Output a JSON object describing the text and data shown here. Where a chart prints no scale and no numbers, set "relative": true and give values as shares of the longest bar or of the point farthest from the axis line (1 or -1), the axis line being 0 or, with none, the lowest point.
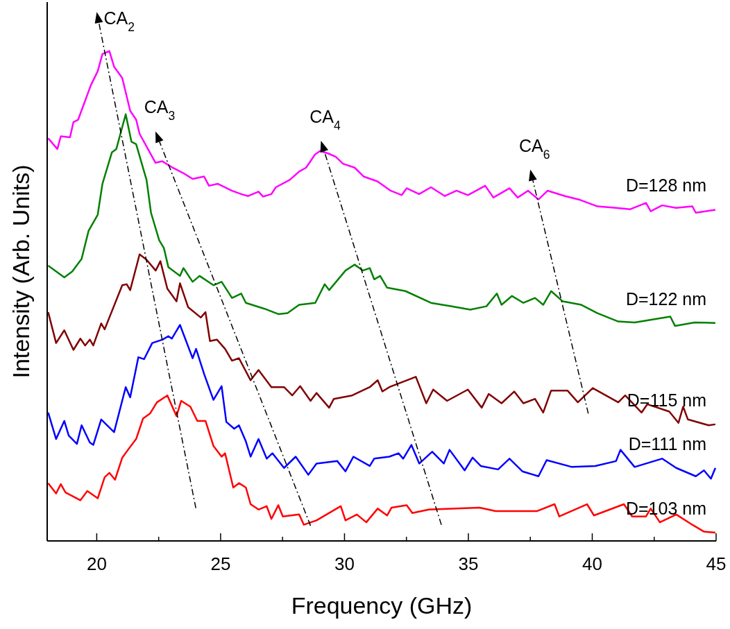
{
  "chart_data": {
    "type": "line",
    "relative": true,
    "xlabel": "Frequency (GHz)",
    "ylabel": "Intensity (Arb. Units)",
    "xlim": [
      18,
      45
    ],
    "xticks": [
      20,
      {
        "value": 22.5,
        "label": null
      },
      25,
      {
        "value": 27.5,
        "label": null
      },
      30,
      {
        "value": 32.5,
        "label": null
      },
      35,
      {
        "value": 37.5,
        "label": null
      },
      40,
      {
        "value": 42.5,
        "label": null
      },
      45
    ],
    "annotations": [
      "CA$_{2}$",
      "CA$_{3}$",
      "CA$_{4}$",
      "CA$_{6}$"
    ],
    "series": [
      {
        "name": "D=128 nm",
        "color": "#ff00ff",
        "x": [
          18.04,
          18.41,
          18.55,
          18.92,
          19.06,
          19.25,
          19.76,
          20.04,
          20.23,
          20.51,
          20.7,
          21.03,
          21.35,
          21.59,
          21.73,
          22.09,
          22.37,
          22.65,
          23.03,
          23.49,
          23.87,
          24.33,
          24.53,
          24.89,
          25.45,
          25.83,
          26.11,
          26.53,
          26.71,
          27.05,
          27.23,
          27.79,
          28.17,
          28.45,
          28.81,
          29.01,
          29.34,
          29.65,
          29.94,
          30.41,
          30.77,
          31.33,
          31.86,
          32.31,
          32.51,
          33.01,
          33.49,
          34.05,
          34.52,
          34.98,
          35.68,
          36.01,
          36.66,
          36.99,
          37.41,
          37.83,
          38.2,
          38.9,
          39.46,
          40.21,
          40.96,
          41.52,
          42.17,
          42.36,
          42.82,
          43.38,
          44.04,
          44.18,
          44.97
        ],
        "values": [
          0.822,
          0.8,
          0.826,
          0.824,
          0.855,
          0.86,
          0.93,
          0.959,
          0.994,
          1.0,
          0.968,
          0.945,
          0.878,
          0.86,
          0.831,
          0.798,
          0.772,
          0.775,
          0.763,
          0.751,
          0.739,
          0.744,
          0.725,
          0.729,
          0.715,
          0.708,
          0.704,
          0.713,
          0.703,
          0.708,
          0.722,
          0.737,
          0.754,
          0.762,
          0.789,
          0.796,
          0.791,
          0.784,
          0.77,
          0.762,
          0.744,
          0.734,
          0.715,
          0.706,
          0.72,
          0.708,
          0.722,
          0.704,
          0.715,
          0.706,
          0.725,
          0.701,
          0.72,
          0.701,
          0.715,
          0.697,
          0.715,
          0.704,
          0.697,
          0.683,
          0.68,
          0.677,
          0.69,
          0.673,
          0.685,
          0.68,
          0.683,
          0.67,
          0.676
        ]
      },
      {
        "name": "D=122 nm",
        "color": "#008000",
        "x": [
          18.04,
          18.69,
          19.01,
          19.39,
          19.67,
          20.04,
          20.23,
          20.61,
          20.79,
          21.17,
          21.4,
          21.59,
          22.01,
          22.19,
          22.52,
          22.71,
          22.89,
          23.36,
          23.5,
          23.87,
          24.15,
          24.71,
          25.04,
          25.46,
          25.83,
          26.02,
          26.77,
          27.33,
          27.7,
          28.17,
          28.82,
          29.2,
          29.38,
          30.04,
          30.41,
          30.74,
          31.02,
          31.2,
          31.44,
          31.72,
          32.46,
          33.49,
          34.33,
          35.08,
          35.73,
          36.15,
          36.34,
          36.76,
          37.22,
          37.69,
          38.02,
          38.34,
          38.81,
          39.56,
          40.21,
          41.05,
          41.71,
          43.15,
          43.34,
          44.13,
          44.97
        ],
        "values": [
          0.562,
          0.538,
          0.55,
          0.576,
          0.633,
          0.666,
          0.729,
          0.793,
          0.8,
          0.871,
          0.815,
          0.81,
          0.737,
          0.67,
          0.614,
          0.598,
          0.559,
          0.541,
          0.557,
          0.529,
          0.541,
          0.522,
          0.529,
          0.496,
          0.505,
          0.486,
          0.474,
          0.463,
          0.465,
          0.482,
          0.486,
          0.524,
          0.512,
          0.552,
          0.564,
          0.552,
          0.557,
          0.534,
          0.541,
          0.517,
          0.51,
          0.486,
          0.479,
          0.472,
          0.479,
          0.505,
          0.482,
          0.5,
          0.486,
          0.496,
          0.482,
          0.51,
          0.489,
          0.482,
          0.465,
          0.448,
          0.446,
          0.458,
          0.439,
          0.446,
          0.445
        ]
      },
      {
        "name": "D=115 nm",
        "color": "#800000",
        "x": [
          18.04,
          18.36,
          18.69,
          19.06,
          19.34,
          19.53,
          19.72,
          19.86,
          20.18,
          20.32,
          21.03,
          21.21,
          21.35,
          21.73,
          22.01,
          22.38,
          22.57,
          22.85,
          23.22,
          23.36,
          23.69,
          24.2,
          24.39,
          24.57,
          24.85,
          25.18,
          25.46,
          25.74,
          26.21,
          26.53,
          27.05,
          27.56,
          27.89,
          28.21,
          28.63,
          28.87,
          29.38,
          29.57,
          30.31,
          31.02,
          31.34,
          31.53,
          31.81,
          32.88,
          33.3,
          33.58,
          34.14,
          34.98,
          35.54,
          35.82,
          36.34,
          36.85,
          37.22,
          37.69,
          38.02,
          38.34,
          39.0,
          39.42,
          40.02,
          41.05,
          41.33,
          41.99,
          42.22,
          43.11,
          43.48,
          43.67,
          43.86,
          44.7,
          44.97
        ],
        "values": [
          0.467,
          0.404,
          0.43,
          0.39,
          0.413,
          0.399,
          0.411,
          0.399,
          0.444,
          0.432,
          0.522,
          0.524,
          0.512,
          0.585,
          0.574,
          0.552,
          0.571,
          0.515,
          0.489,
          0.526,
          0.477,
          0.456,
          0.467,
          0.408,
          0.411,
          0.392,
          0.368,
          0.373,
          0.328,
          0.349,
          0.314,
          0.314,
          0.297,
          0.316,
          0.286,
          0.302,
          0.272,
          0.29,
          0.297,
          0.314,
          0.328,
          0.305,
          0.314,
          0.335,
          0.281,
          0.309,
          0.286,
          0.309,
          0.272,
          0.3,
          0.281,
          0.305,
          0.281,
          0.29,
          0.262,
          0.307,
          0.307,
          0.283,
          0.312,
          0.283,
          0.297,
          0.262,
          0.279,
          0.264,
          0.241,
          0.274,
          0.248,
          0.236,
          0.238
        ]
      },
      {
        "name": "D=111 nm",
        "color": "#0000ff",
        "x": [
          18.04,
          18.36,
          18.69,
          18.87,
          19.2,
          19.39,
          19.72,
          19.86,
          20.18,
          20.7,
          21.17,
          21.35,
          21.68,
          21.91,
          22.24,
          22.66,
          22.89,
          23.03,
          23.36,
          23.87,
          24.01,
          24.34,
          24.71,
          25.04,
          25.23,
          25.55,
          25.74,
          26.02,
          26.21,
          26.53,
          26.86,
          27.09,
          27.56,
          28.03,
          28.54,
          28.87,
          29.71,
          30.04,
          30.36,
          31.02,
          31.2,
          31.81,
          32.18,
          32.37,
          32.7,
          33.02,
          33.54,
          34.01,
          34.24,
          34.85,
          35.17,
          35.5,
          36.2,
          36.66,
          37.18,
          37.83,
          38.16,
          39.18,
          40.12,
          40.96,
          41.14,
          41.71,
          42.82,
          43.39,
          44.18,
          44.51,
          44.79,
          44.97
        ],
        "values": [
          0.262,
          0.208,
          0.245,
          0.215,
          0.198,
          0.236,
          0.201,
          0.196,
          0.248,
          0.222,
          0.314,
          0.293,
          0.375,
          0.371,
          0.404,
          0.411,
          0.418,
          0.413,
          0.441,
          0.373,
          0.392,
          0.34,
          0.288,
          0.316,
          0.243,
          0.229,
          0.236,
          0.203,
          0.172,
          0.208,
          0.168,
          0.179,
          0.149,
          0.172,
          0.135,
          0.158,
          0.163,
          0.142,
          0.172,
          0.153,
          0.168,
          0.172,
          0.179,
          0.168,
          0.196,
          0.158,
          0.182,
          0.158,
          0.186,
          0.144,
          0.17,
          0.153,
          0.146,
          0.168,
          0.142,
          0.132,
          0.165,
          0.151,
          0.153,
          0.163,
          0.186,
          0.151,
          0.168,
          0.149,
          0.132,
          0.144,
          0.127,
          0.149
        ]
      },
      {
        "name": "D=103 nm",
        "color": "#ff0000",
        "x": [
          18.04,
          18.36,
          18.55,
          18.74,
          19.34,
          19.62,
          20.04,
          20.32,
          20.51,
          20.74,
          21.03,
          21.26,
          21.59,
          21.87,
          22.15,
          22.43,
          22.85,
          23.22,
          23.41,
          23.78,
          24.06,
          24.39,
          24.71,
          25.04,
          25.18,
          25.51,
          25.74,
          26.02,
          26.21,
          26.53,
          26.86,
          27.05,
          27.33,
          27.51,
          28.17,
          28.36,
          28.87,
          29.85,
          30.04,
          30.5,
          30.88,
          31.34,
          31.72,
          31.9,
          32.51,
          32.74,
          33.4,
          35.45,
          36.1,
          37.78,
          38.48,
          38.67,
          39.79,
          40.07,
          41.28,
          41.61,
          42.17,
          42.36,
          42.73,
          43.39,
          44.04,
          44.51,
          44.97
        ],
        "values": [
          0.118,
          0.097,
          0.116,
          0.099,
          0.083,
          0.102,
          0.087,
          0.13,
          0.139,
          0.125,
          0.17,
          0.186,
          0.208,
          0.25,
          0.26,
          0.283,
          0.297,
          0.255,
          0.286,
          0.274,
          0.245,
          0.245,
          0.194,
          0.172,
          0.179,
          0.109,
          0.118,
          0.109,
          0.075,
          0.064,
          0.071,
          0.045,
          0.073,
          0.05,
          0.054,
          0.033,
          0.042,
          0.071,
          0.042,
          0.054,
          0.038,
          0.066,
          0.052,
          0.068,
          0.073,
          0.057,
          0.064,
          0.068,
          0.061,
          0.061,
          0.075,
          0.05,
          0.075,
          0.052,
          0.075,
          0.05,
          0.05,
          0.066,
          0.038,
          0.054,
          0.033,
          0.019,
          0.017
        ]
      }
    ]
  }
}
